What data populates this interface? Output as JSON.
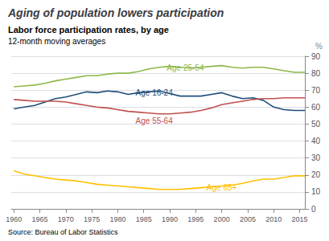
{
  "chart_data": {
    "type": "line",
    "title": "Aging of population lowers participation",
    "subtitle": "Labor force participation rates, by age",
    "subtitle2": "12-month moving averages",
    "source": "Source: Bureau of Labor Statistics",
    "ylabel": "%",
    "xlim": [
      1959.5,
      2016
    ],
    "xticks": [
      1960,
      1965,
      1970,
      1975,
      1980,
      1985,
      1990,
      1995,
      2000,
      2005,
      2010,
      2015
    ],
    "ylim": [
      0,
      90
    ],
    "yticks": [
      0,
      10,
      20,
      30,
      40,
      50,
      60,
      70,
      80,
      90
    ],
    "grid": true,
    "x": [
      1960,
      1962,
      1964,
      1966,
      1968,
      1970,
      1972,
      1974,
      1976,
      1978,
      1980,
      1982,
      1984,
      1986,
      1988,
      1990,
      1992,
      1994,
      1996,
      1998,
      2000,
      2002,
      2004,
      2006,
      2008,
      2010,
      2012,
      2014,
      2016
    ],
    "series": [
      {
        "name": "Age 25-54",
        "color": "#8db84a",
        "values": [
          72.0,
          72.5,
          73.0,
          74.0,
          75.5,
          76.5,
          77.5,
          78.5,
          78.5,
          79.5,
          80.0,
          80.0,
          81.0,
          82.5,
          83.5,
          84.0,
          83.5,
          83.0,
          83.5,
          84.0,
          84.5,
          83.5,
          83.0,
          83.5,
          83.5,
          82.5,
          81.5,
          80.5,
          80.5
        ]
      },
      {
        "name": "Age 16-24",
        "color": "#1f4e79",
        "values": [
          59.0,
          60.0,
          61.0,
          63.0,
          65.0,
          66.0,
          67.5,
          69.0,
          68.5,
          69.5,
          69.0,
          67.5,
          68.5,
          69.0,
          69.5,
          68.0,
          66.5,
          66.5,
          66.5,
          67.5,
          68.5,
          66.5,
          65.0,
          65.5,
          64.0,
          60.0,
          58.5,
          58.0,
          58.0
        ]
      },
      {
        "name": "Age 55-64",
        "color": "#c0504d",
        "values": [
          64.5,
          64.0,
          63.5,
          63.5,
          63.5,
          63.0,
          62.0,
          61.0,
          60.0,
          59.5,
          58.5,
          57.5,
          57.0,
          56.5,
          56.0,
          56.0,
          56.5,
          57.0,
          58.0,
          59.5,
          61.5,
          62.5,
          63.5,
          64.5,
          65.0,
          65.0,
          65.5,
          65.5,
          65.5
        ]
      },
      {
        "name": "Age 65+",
        "color": "#ffc000",
        "values": [
          22.5,
          20.5,
          19.5,
          18.5,
          17.5,
          17.0,
          16.5,
          15.5,
          14.5,
          14.0,
          13.5,
          13.0,
          12.5,
          12.0,
          11.5,
          11.5,
          11.5,
          12.0,
          12.5,
          13.0,
          13.5,
          14.0,
          15.0,
          16.5,
          17.5,
          17.5,
          18.5,
          19.5,
          19.5
        ]
      }
    ],
    "annotations": [
      {
        "text": "Age 25-54",
        "x": 1993,
        "y": 83
      },
      {
        "text": "Age 16-24",
        "x": 1987,
        "y": 68.5
      },
      {
        "text": "Age 55-64",
        "x": 1987,
        "y": 52.0
      },
      {
        "text": "Age 65+",
        "x": 2000,
        "y": 12.5
      }
    ]
  }
}
